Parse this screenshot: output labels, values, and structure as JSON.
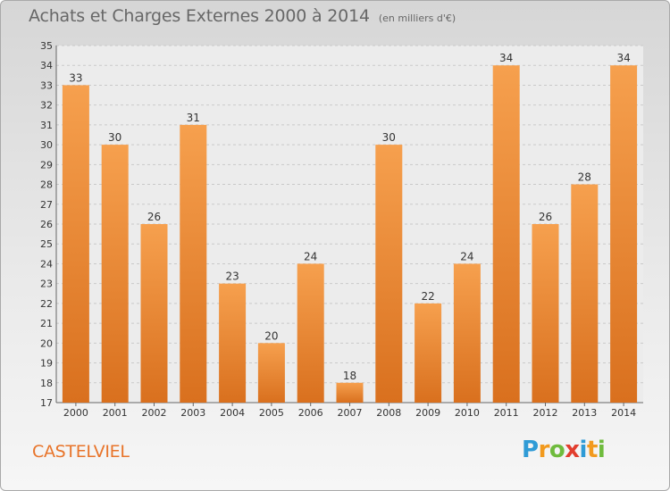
{
  "title": "Achats et Charges Externes 2000 à 2014",
  "unit": "(en milliers d'€)",
  "commune": "CASTELVIEL",
  "logo": {
    "letters": [
      "P",
      "r",
      "o",
      "x",
      "i",
      "t",
      "i"
    ],
    "colors": [
      "#2f9bd6",
      "#f29a1e",
      "#6fbb3d",
      "#e23e2e",
      "#2f9bd6",
      "#f29a1e",
      "#6fbb3d"
    ]
  },
  "chart_data": {
    "type": "bar",
    "categories": [
      "2000",
      "2001",
      "2002",
      "2003",
      "2004",
      "2005",
      "2006",
      "2007",
      "2008",
      "2009",
      "2010",
      "2011",
      "2012",
      "2013",
      "2014"
    ],
    "values": [
      33,
      30,
      26,
      31,
      23,
      20,
      24,
      18,
      30,
      22,
      24,
      34,
      26,
      28,
      34
    ],
    "ylim": [
      17,
      35
    ],
    "yticks": [
      17,
      18,
      19,
      20,
      21,
      22,
      23,
      24,
      25,
      26,
      27,
      28,
      29,
      30,
      31,
      32,
      33,
      34,
      35
    ],
    "grid": true,
    "bar_color_top": "#f6a04e",
    "bar_color_bottom": "#d9701e"
  }
}
